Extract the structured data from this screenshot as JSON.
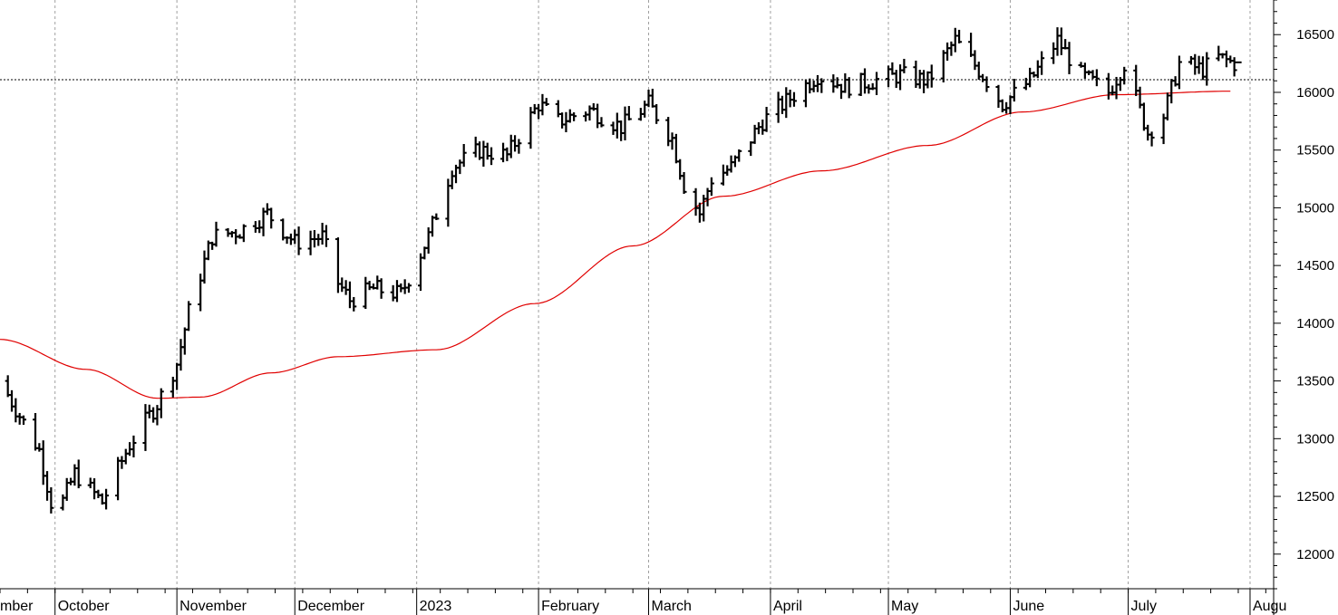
{
  "chart_data": {
    "type": "ohlc-bar",
    "title": "",
    "xlabel": "",
    "ylabel": "",
    "ylim": [
      11700,
      16800
    ],
    "y_ticks": [
      12000,
      12500,
      13000,
      13500,
      14000,
      14500,
      15000,
      15500,
      16000,
      16500
    ],
    "y_tick_labels": [
      "12000",
      "12500",
      "13000",
      "13500",
      "14000",
      "14500",
      "15000",
      "15500",
      "16000",
      "16500"
    ],
    "x_range": [
      "2022-09-17",
      "2023-08-07"
    ],
    "month_labels": [
      {
        "label": "mber",
        "date": "2022-09-01"
      },
      {
        "label": "October",
        "date": "2022-10-01"
      },
      {
        "label": "November",
        "date": "2022-11-01"
      },
      {
        "label": "December",
        "date": "2022-12-01"
      },
      {
        "label": "2023",
        "date": "2023-01-01"
      },
      {
        "label": "February",
        "date": "2023-02-01"
      },
      {
        "label": "March",
        "date": "2023-03-01"
      },
      {
        "label": "April",
        "date": "2023-04-01"
      },
      {
        "label": "May",
        "date": "2023-05-01"
      },
      {
        "label": "June",
        "date": "2023-06-01"
      },
      {
        "label": "July",
        "date": "2023-07-01"
      },
      {
        "label": "Augu",
        "date": "2023-08-01"
      }
    ],
    "reference_line": 16110,
    "price_series": {
      "dates": [
        "2022-09-17",
        "2022-09-27",
        "2022-10-01",
        "2022-10-06",
        "2022-10-13",
        "2022-10-20",
        "2022-10-27",
        "2022-11-01",
        "2022-11-04",
        "2022-11-10",
        "2022-11-17",
        "2022-11-24",
        "2022-12-01",
        "2022-12-08",
        "2022-12-12",
        "2022-12-15",
        "2022-12-21",
        "2022-12-28",
        "2023-01-04",
        "2023-01-10",
        "2023-01-17",
        "2023-01-24",
        "2023-02-01",
        "2023-02-06",
        "2023-02-14",
        "2023-02-22",
        "2023-03-01",
        "2023-03-07",
        "2023-03-10",
        "2023-03-14",
        "2023-03-17",
        "2023-03-22",
        "2023-03-30",
        "2023-04-06",
        "2023-04-13",
        "2023-04-20",
        "2023-04-27",
        "2023-05-04",
        "2023-05-11",
        "2023-05-18",
        "2023-05-25",
        "2023-05-30",
        "2023-06-06",
        "2023-06-13",
        "2023-06-19",
        "2023-06-26",
        "2023-06-30",
        "2023-07-06",
        "2023-07-10",
        "2023-07-14",
        "2023-07-20",
        "2023-07-24",
        "2023-07-28"
      ],
      "closes": [
        13500,
        12900,
        12300,
        12700,
        12450,
        12950,
        13300,
        13650,
        14100,
        14750,
        14800,
        14950,
        14700,
        14750,
        14350,
        14200,
        14300,
        14250,
        14750,
        15350,
        15500,
        15450,
        15900,
        15750,
        15850,
        15700,
        15900,
        15600,
        15200,
        14950,
        15250,
        15350,
        15750,
        15950,
        16150,
        16050,
        16100,
        16150,
        16100,
        16450,
        16150,
        15900,
        16100,
        16450,
        16150,
        16000,
        16250,
        15650,
        15800,
        16250,
        16200,
        16300,
        16250
      ]
    },
    "series": [
      {
        "x": [
          "2022-09-17",
          "2022-10-09",
          "2022-10-27",
          "2022-11-07",
          "2022-11-25",
          "2022-12-12",
          "2023-01-06",
          "2023-01-31",
          "2023-02-25",
          "2023-03-20",
          "2023-04-14",
          "2023-05-11",
          "2023-06-04",
          "2023-06-28",
          "2023-07-27"
        ],
        "values": [
          13860,
          13600,
          13350,
          13360,
          13570,
          13710,
          13770,
          14170,
          14670,
          15100,
          15320,
          15540,
          15830,
          15980,
          16010
        ]
      }
    ],
    "colors": {
      "price": "#000000",
      "moving_average": "#e00000",
      "grid": "#a0a0a0",
      "reference": "#000000"
    }
  }
}
